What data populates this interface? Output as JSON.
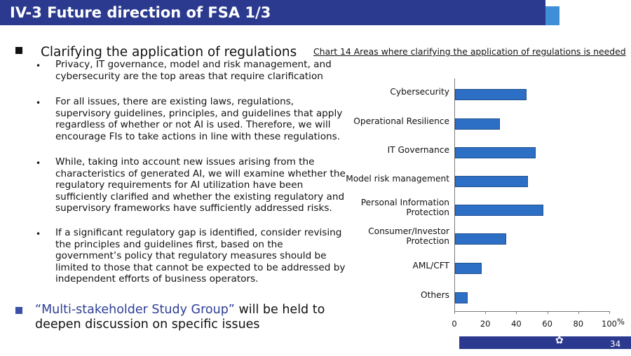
{
  "title": "IV-3 Future direction of FSA 1/3",
  "main_heading": "Clarifying the application of regulations",
  "sub_bullets": [
    "Privacy, IT governance, model and risk management, and cybersecurity are the top areas that require clarification",
    "For all issues, there are existing laws, regulations, supervisory guidelines, principles, and guidelines that apply regardless of whether or not AI is used. Therefore, we will encourage FIs to take actions in line with these regulations.",
    "While, taking into account new issues arising from the characteristics of generated AI, we will examine whether the regulatory requirements for AI utilization have been sufficiently clarified and whether the existing regulatory and supervisory frameworks have sufficiently addressed risks.",
    "If a significant regulatory gap is identified, consider revising the principles and guidelines first, based on the government’s policy that regulatory measures should be limited to those that cannot be expected to be addressed by independent efforts of business operators."
  ],
  "multi_stakeholder": {
    "emphasis": "“Multi-stakeholder Study Group”",
    "rest": " will be held to deepen discussion on specific issues"
  },
  "chart_data": {
    "type": "bar",
    "orientation": "horizontal",
    "title": "Chart 14 Areas where clarifying the application of regulations is needed",
    "categories": [
      "Cybersecurity",
      "Operational Resilience",
      "IT Governance",
      "Model risk management",
      "Personal Information\nProtection",
      "Consumer/Investor\nProtection",
      "AML/CFT",
      "Others"
    ],
    "values": [
      46,
      29,
      52,
      47,
      57,
      33,
      17,
      8
    ],
    "xlim": [
      0,
      100
    ],
    "xticks": [
      "0",
      "20",
      "40",
      "60",
      "80",
      "100"
    ],
    "unit": "%",
    "grid": false,
    "bar_color": "#2d6fc4"
  },
  "footer": {
    "page": "34",
    "logo_text": "F.S.A"
  }
}
